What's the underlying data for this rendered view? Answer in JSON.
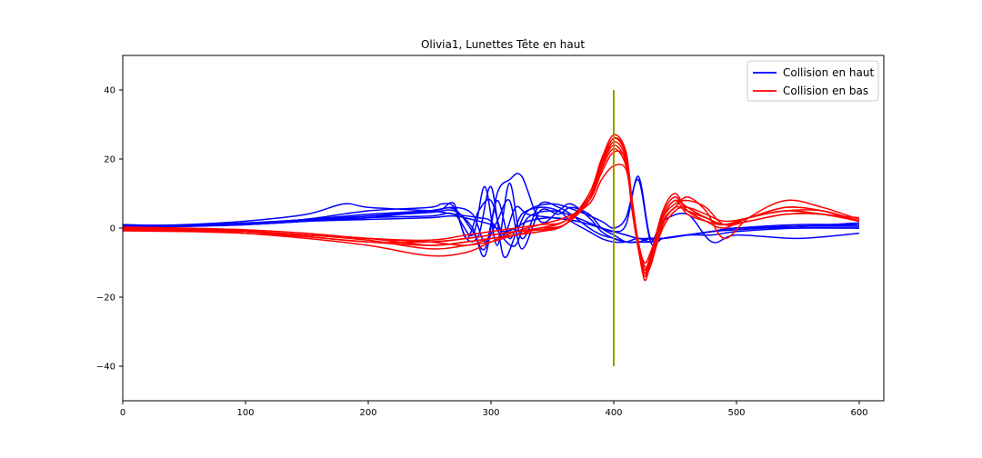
{
  "chart_data": {
    "type": "line",
    "title": "Olivia1, Lunettes Tête en haut",
    "xlabel": "",
    "ylabel": "",
    "xlim": [
      0,
      620
    ],
    "ylim": [
      -50,
      50
    ],
    "xticks": [
      "0",
      "100",
      "200",
      "300",
      "400",
      "500",
      "600"
    ],
    "yticks": [
      "40",
      "20",
      "0",
      "−20",
      "−40"
    ],
    "grid": false,
    "legend_position": "top-right",
    "legend": [
      {
        "label": "Collision en haut",
        "color": "#0000ff"
      },
      {
        "label": "Collision en bas",
        "color": "#ff0000"
      }
    ],
    "annotations": [
      {
        "type": "vertical-line",
        "x": 400,
        "y_range": [
          -40,
          40
        ],
        "color": "#9a9a00"
      }
    ],
    "series_groups": [
      {
        "label": "Collision en haut",
        "color": "#0000ff",
        "series": [
          {
            "x": [
              0,
              50,
              100,
              150,
              200,
              250,
              270,
              285,
              295,
              305,
              315,
              325,
              340,
              355,
              365,
              380,
              390,
              400,
              410,
              420,
              430,
              440,
              460,
              480,
              500,
              550,
              600
            ],
            "y": [
              0.5,
              0.8,
              1.5,
              2.5,
              4,
              5,
              5.5,
              -1,
              -6,
              8,
              -3,
              4,
              6,
              5,
              2,
              -1,
              -3,
              -4,
              -4,
              -3,
              -4,
              -3,
              -2,
              -1,
              0,
              0.5,
              0.5
            ]
          },
          {
            "x": [
              0,
              50,
              100,
              150,
              200,
              250,
              270,
              285,
              295,
              305,
              315,
              325,
              340,
              355,
              365,
              380,
              390,
              400,
              410,
              420,
              430,
              440,
              460,
              480,
              500,
              550,
              600
            ],
            "y": [
              1,
              0.5,
              1,
              2,
              3,
              3.5,
              4,
              -2,
              12,
              -5,
              13,
              -3,
              7,
              6,
              4,
              0,
              -2,
              -3,
              -4,
              -4,
              -4,
              -3,
              -2,
              -1,
              0,
              1,
              1
            ]
          },
          {
            "x": [
              0,
              50,
              100,
              150,
              200,
              250,
              270,
              285,
              295,
              305,
              315,
              325,
              340,
              355,
              365,
              380,
              390,
              400,
              410,
              420,
              430,
              440,
              460,
              480,
              500,
              550,
              600
            ],
            "y": [
              0.8,
              0.7,
              1.2,
              2.2,
              3.5,
              4.5,
              5,
              0,
              -8,
              10,
              14,
              15,
              2,
              5,
              7,
              3,
              -1,
              -3,
              -4,
              -4,
              -3,
              -3,
              -2,
              -1,
              -0.5,
              0.5,
              1
            ]
          },
          {
            "x": [
              0,
              50,
              100,
              150,
              200,
              250,
              270,
              285,
              295,
              305,
              315,
              325,
              340,
              355,
              365,
              380,
              390,
              400,
              410,
              420,
              430,
              440,
              460,
              480,
              500,
              550,
              600
            ],
            "y": [
              0.3,
              0.6,
              1,
              2,
              3,
              5,
              6,
              4,
              -4,
              2,
              8,
              -6,
              5,
              4,
              6,
              4,
              0,
              -2,
              -4,
              -4,
              -3,
              -3,
              -2,
              -1,
              0,
              0.5,
              1.5
            ]
          },
          {
            "x": [
              0,
              50,
              100,
              150,
              200,
              250,
              260,
              270,
              280,
              290,
              300,
              310,
              320,
              330,
              350,
              370,
              390,
              400,
              410,
              420,
              430,
              440,
              460,
              480,
              500,
              550,
              600
            ],
            "y": [
              0.2,
              0.5,
              1.2,
              2.5,
              3.5,
              5,
              5.5,
              7,
              -3,
              5,
              8,
              -2,
              6,
              4,
              3,
              2,
              0,
              -1,
              1,
              15,
              -3,
              2,
              4,
              -4,
              -2,
              -3,
              -1.5
            ]
          },
          {
            "x": [
              0,
              50,
              100,
              150,
              200,
              250,
              260,
              270,
              280,
              290,
              300,
              310,
              320,
              330,
              350,
              370,
              390,
              400,
              410,
              420,
              430,
              440,
              460,
              480,
              500,
              550,
              600
            ],
            "y": [
              1,
              0.7,
              1.3,
              2.6,
              5,
              6,
              7,
              6,
              -3,
              -2,
              12,
              -8,
              -2,
              5,
              7,
              5,
              2,
              0,
              3,
              14,
              -4,
              -3,
              -2,
              -2,
              -1,
              0,
              0
            ]
          },
          {
            "x": [
              0,
              50,
              100,
              150,
              200,
              250,
              270,
              290,
              300,
              310,
              320,
              330,
              350,
              370,
              390,
              400,
              410,
              420,
              430,
              440,
              460,
              480,
              500,
              550,
              600
            ],
            "y": [
              0.5,
              0.6,
              1,
              2,
              2.5,
              3,
              3.5,
              2,
              1,
              -1,
              0,
              2,
              3,
              2,
              0,
              -1,
              -2,
              -3,
              -3,
              -3,
              -2,
              -1,
              0,
              0,
              0
            ]
          },
          {
            "x": [
              0,
              50,
              100,
              150,
              180,
              200,
              250,
              270,
              290,
              300,
              310,
              320,
              330,
              350,
              370,
              390,
              400,
              410,
              420,
              430,
              440,
              460,
              480,
              500,
              550,
              600
            ],
            "y": [
              0.8,
              1,
              2,
              4,
              7,
              6,
              5,
              4,
              3,
              2,
              -3,
              -5,
              3,
              5,
              3,
              0,
              -1,
              -2,
              -3,
              -3,
              -3,
              -2,
              -1,
              0,
              0.5,
              1
            ]
          }
        ]
      },
      {
        "label": "Collision en bas",
        "color": "#ff0000",
        "series": [
          {
            "x": [
              0,
              50,
              100,
              150,
              200,
              250,
              280,
              300,
              320,
              340,
              360,
              380,
              390,
              400,
              410,
              415,
              420,
              425,
              430,
              440,
              450,
              460,
              475,
              490,
              510,
              540,
              570,
              600
            ],
            "y": [
              0,
              -0.5,
              -1,
              -2,
              -3,
              -4,
              -3,
              -2,
              -1,
              -0.5,
              1,
              8,
              18,
              25,
              20,
              5,
              -5,
              -12,
              -8,
              3,
              8,
              4,
              2,
              1,
              3,
              5,
              4,
              3
            ]
          },
          {
            "x": [
              0,
              50,
              100,
              150,
              200,
              250,
              280,
              300,
              320,
              340,
              360,
              380,
              390,
              400,
              410,
              415,
              420,
              425,
              430,
              440,
              450,
              460,
              475,
              490,
              510,
              540,
              570,
              600
            ],
            "y": [
              -0.5,
              -0.5,
              -1,
              -2.5,
              -4,
              -5,
              -4,
              -3,
              -2,
              -1,
              1,
              10,
              20,
              27,
              22,
              6,
              -6,
              -14,
              -9,
              4,
              9,
              5,
              3,
              1,
              3,
              6,
              5,
              2
            ]
          },
          {
            "x": [
              0,
              50,
              100,
              150,
              200,
              250,
              280,
              300,
              320,
              340,
              360,
              380,
              390,
              400,
              410,
              415,
              420,
              425,
              430,
              440,
              450,
              460,
              475,
              490,
              510,
              540,
              570,
              600
            ],
            "y": [
              -0.3,
              -0.4,
              -1,
              -2,
              -3.5,
              -6,
              -5,
              -4,
              -2,
              -1,
              1,
              9,
              19,
              26,
              21,
              6,
              -5,
              -13,
              -8,
              5,
              10,
              5,
              2,
              0,
              3,
              5,
              5,
              2
            ]
          },
          {
            "x": [
              0,
              50,
              100,
              150,
              200,
              250,
              280,
              300,
              320,
              340,
              360,
              380,
              390,
              400,
              410,
              415,
              420,
              425,
              430,
              440,
              450,
              460,
              475,
              490,
              510,
              540,
              570,
              600
            ],
            "y": [
              0,
              -0.5,
              -1,
              -2,
              -3,
              -4,
              -5,
              -3,
              -2,
              0,
              2,
              8,
              16,
              22,
              20,
              8,
              -4,
              -10,
              -7,
              3,
              7,
              8,
              6,
              1,
              2,
              4,
              4,
              2
            ]
          },
          {
            "x": [
              0,
              50,
              100,
              150,
              200,
              250,
              280,
              300,
              320,
              340,
              360,
              380,
              390,
              400,
              410,
              415,
              420,
              425,
              430,
              440,
              450,
              460,
              475,
              490,
              510,
              540,
              570,
              600
            ],
            "y": [
              -0.5,
              -0.7,
              -1.5,
              -3,
              -5,
              -8,
              -7,
              -4,
              -1,
              1,
              3,
              7,
              14,
              18,
              17,
              6,
              -4,
              -11,
              -9,
              2,
              6,
              9,
              5,
              -3,
              3,
              8,
              6,
              2.5
            ]
          },
          {
            "x": [
              0,
              50,
              100,
              150,
              200,
              250,
              280,
              300,
              320,
              340,
              360,
              380,
              390,
              400,
              410,
              415,
              420,
              425,
              430,
              440,
              450,
              460,
              475,
              490,
              510,
              540,
              570,
              600
            ],
            "y": [
              0,
              -0.3,
              -0.8,
              -2,
              -3,
              -5,
              -4,
              -3,
              -2,
              0,
              2,
              9,
              18,
              24,
              19,
              5,
              -5,
              -12,
              -10,
              0,
              5,
              6,
              4,
              2,
              3,
              6,
              5,
              2
            ]
          },
          {
            "x": [
              0,
              50,
              100,
              150,
              200,
              250,
              280,
              300,
              320,
              340,
              360,
              380,
              390,
              400,
              410,
              415,
              420,
              425,
              430,
              440,
              450,
              460,
              475,
              490,
              510,
              540,
              570,
              600
            ],
            "y": [
              -0.8,
              -1,
              -1.5,
              -2.5,
              -4,
              -4,
              -3,
              -2,
              -1,
              0,
              1,
              8,
              17,
              23,
              18,
              5,
              -6,
              -13,
              -11,
              1,
              6,
              5,
              3,
              1,
              2,
              4,
              4,
              2
            ]
          },
          {
            "x": [
              0,
              50,
              100,
              150,
              200,
              250,
              280,
              300,
              320,
              340,
              360,
              380,
              390,
              400,
              410,
              415,
              420,
              425,
              430,
              440,
              450,
              460,
              475,
              490,
              510,
              540,
              570,
              600
            ],
            "y": [
              0.3,
              0,
              -0.5,
              -1.5,
              -3,
              -3.5,
              -2,
              -1,
              0,
              1,
              2,
              9,
              19,
              26,
              22,
              7,
              -5,
              -15,
              -10,
              3,
              8,
              6,
              3,
              1,
              3,
              5,
              4,
              2
            ]
          }
        ]
      }
    ]
  }
}
